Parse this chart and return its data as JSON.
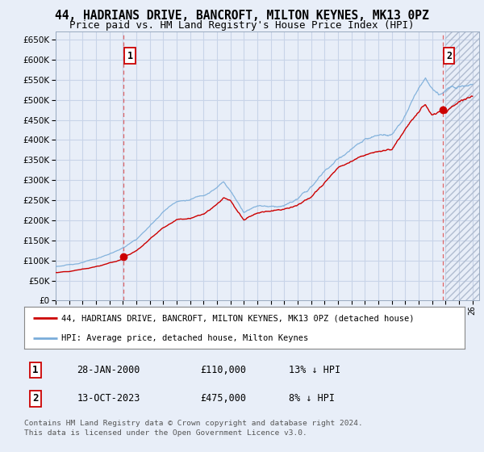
{
  "title": "44, HADRIANS DRIVE, BANCROFT, MILTON KEYNES, MK13 0PZ",
  "subtitle": "Price paid vs. HM Land Registry's House Price Index (HPI)",
  "ylabel_ticks": [
    0,
    50000,
    100000,
    150000,
    200000,
    250000,
    300000,
    350000,
    400000,
    450000,
    500000,
    550000,
    600000,
    650000
  ],
  "ylim": [
    0,
    670000
  ],
  "xlim_start": 1995.0,
  "xlim_end": 2026.5,
  "sale1_date": 2000.07,
  "sale1_price": 110000,
  "sale2_date": 2023.79,
  "sale2_price": 475000,
  "legend_line1": "44, HADRIANS DRIVE, BANCROFT, MILTON KEYNES, MK13 0PZ (detached house)",
  "legend_line2": "HPI: Average price, detached house, Milton Keynes",
  "footnote_line1": "Contains HM Land Registry data © Crown copyright and database right 2024.",
  "footnote_line2": "This data is licensed under the Open Government Licence v3.0.",
  "table_row1_num": "1",
  "table_row1_date": "28-JAN-2000",
  "table_row1_price": "£110,000",
  "table_row1_hpi": "13% ↓ HPI",
  "table_row2_num": "2",
  "table_row2_date": "13-OCT-2023",
  "table_row2_price": "£475,000",
  "table_row2_hpi": "8% ↓ HPI",
  "background_color": "#e8eef8",
  "plot_bg_color": "#e8eef8",
  "grid_color": "#c8d4e8",
  "red_line_color": "#cc0000",
  "blue_line_color": "#7aadda",
  "vline_color": "#dd4444",
  "box_color": "#cc0000",
  "title_fontsize": 10.5,
  "subtitle_fontsize": 9.0,
  "hpi_points": [
    [
      1995.0,
      85000
    ],
    [
      1996.0,
      89000
    ],
    [
      1997.0,
      95000
    ],
    [
      1998.0,
      103000
    ],
    [
      1999.0,
      115000
    ],
    [
      2000.0,
      130000
    ],
    [
      2001.0,
      150000
    ],
    [
      2002.0,
      183000
    ],
    [
      2003.0,
      220000
    ],
    [
      2004.0,
      248000
    ],
    [
      2005.0,
      252000
    ],
    [
      2006.0,
      265000
    ],
    [
      2007.0,
      285000
    ],
    [
      2007.5,
      300000
    ],
    [
      2008.0,
      278000
    ],
    [
      2009.0,
      228000
    ],
    [
      2010.0,
      248000
    ],
    [
      2011.0,
      248000
    ],
    [
      2012.0,
      252000
    ],
    [
      2013.0,
      268000
    ],
    [
      2014.0,
      295000
    ],
    [
      2015.0,
      335000
    ],
    [
      2016.0,
      365000
    ],
    [
      2017.0,
      390000
    ],
    [
      2018.0,
      408000
    ],
    [
      2019.0,
      415000
    ],
    [
      2020.0,
      420000
    ],
    [
      2021.0,
      468000
    ],
    [
      2022.0,
      535000
    ],
    [
      2022.5,
      555000
    ],
    [
      2023.0,
      530000
    ],
    [
      2023.5,
      510000
    ],
    [
      2024.0,
      520000
    ],
    [
      2025.0,
      540000
    ],
    [
      2026.0,
      555000
    ]
  ],
  "prop_points": [
    [
      1995.0,
      70000
    ],
    [
      1996.0,
      73000
    ],
    [
      1997.0,
      79000
    ],
    [
      1998.0,
      86000
    ],
    [
      1999.0,
      95000
    ],
    [
      2000.0,
      105000
    ],
    [
      2000.07,
      110000
    ],
    [
      2001.0,
      128000
    ],
    [
      2002.0,
      158000
    ],
    [
      2003.0,
      190000
    ],
    [
      2004.0,
      210000
    ],
    [
      2005.0,
      215000
    ],
    [
      2006.0,
      225000
    ],
    [
      2007.0,
      248000
    ],
    [
      2007.5,
      265000
    ],
    [
      2008.0,
      258000
    ],
    [
      2009.0,
      208000
    ],
    [
      2010.0,
      228000
    ],
    [
      2011.0,
      232000
    ],
    [
      2012.0,
      238000
    ],
    [
      2013.0,
      248000
    ],
    [
      2014.0,
      268000
    ],
    [
      2015.0,
      305000
    ],
    [
      2016.0,
      338000
    ],
    [
      2017.0,
      358000
    ],
    [
      2018.0,
      375000
    ],
    [
      2019.0,
      380000
    ],
    [
      2020.0,
      382000
    ],
    [
      2021.0,
      428000
    ],
    [
      2022.0,
      465000
    ],
    [
      2022.5,
      485000
    ],
    [
      2023.0,
      460000
    ],
    [
      2023.79,
      475000
    ],
    [
      2024.0,
      468000
    ],
    [
      2025.0,
      498000
    ],
    [
      2026.0,
      510000
    ]
  ]
}
